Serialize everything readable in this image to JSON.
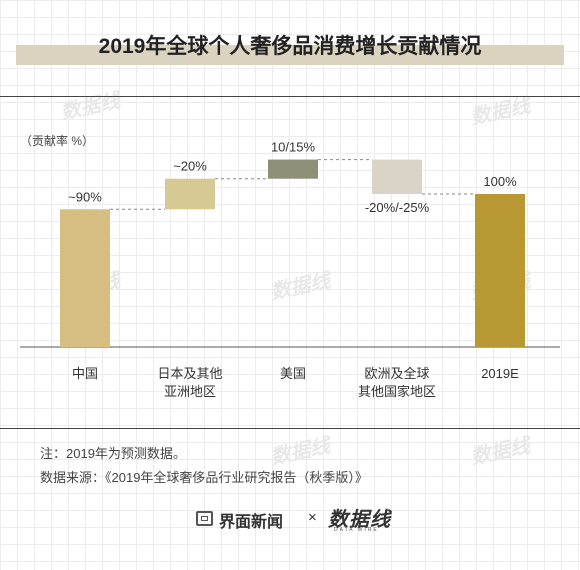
{
  "title": "2019年全球个人奢侈品消费增长贡献情况",
  "chart_data": {
    "type": "waterfall",
    "unit_label": "（贡献率 %）",
    "categories": [
      "中国",
      "日本及其他\n亚洲地区",
      "美国",
      "欧洲及全球\n其他国家地区",
      "2019E"
    ],
    "data_labels": [
      "~90%",
      "~20%",
      "10/15%",
      "-20%/-25%",
      "100%"
    ],
    "bars": [
      {
        "start": 0,
        "end": 90,
        "color": "#d6be82"
      },
      {
        "start": 90,
        "end": 110,
        "color": "#d7c993"
      },
      {
        "start": 110,
        "end": 122.5,
        "color": "#8f8f78"
      },
      {
        "start": 122.5,
        "end": 100,
        "color": "#dad3c7"
      },
      {
        "start": 0,
        "end": 100,
        "color": "#b89833"
      }
    ],
    "ylim": [
      0,
      125
    ]
  },
  "notes": {
    "note": "注：2019年为预测数据。",
    "source": "数据来源：《2019年全球奢侈品行业研究报告（秋季版）》"
  },
  "footer": {
    "brand1": "界面新闻",
    "times": "×",
    "brand2": "数据线",
    "brand2_sub": "DATA WIRE"
  },
  "watermark": "数据线"
}
